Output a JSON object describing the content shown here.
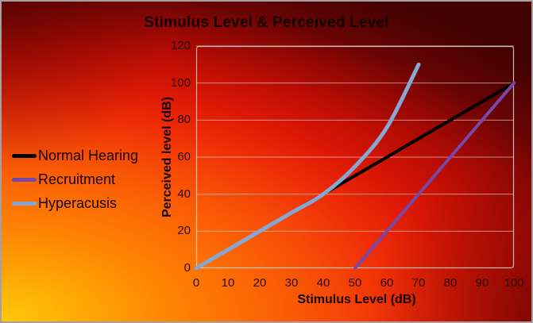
{
  "figure": {
    "kind": "chart-image",
    "frame_border_color": "#a8a0a0"
  },
  "chart_data": {
    "type": "line",
    "title": "Stimulus Level & Perceived Level",
    "xlabel": "Stimulus Level (dB)",
    "ylabel": "Perceived level (dB)",
    "xlim": [
      0,
      100
    ],
    "ylim": [
      0,
      120
    ],
    "x_ticks": [
      0,
      10,
      20,
      30,
      40,
      50,
      60,
      70,
      80,
      90,
      100
    ],
    "y_ticks": [
      0,
      20,
      40,
      60,
      80,
      100,
      120
    ],
    "grid": "horizontal",
    "legend_position": "left",
    "series": [
      {
        "name": "Normal Hearing",
        "color": "#050302",
        "stroke_width": 4,
        "smooth": false,
        "points": [
          [
            0,
            0
          ],
          [
            100,
            100
          ]
        ]
      },
      {
        "name": "Recruitment",
        "color": "#7848a8",
        "stroke_width": 4,
        "smooth": false,
        "points": [
          [
            50,
            0
          ],
          [
            100,
            100
          ]
        ]
      },
      {
        "name": "Hyperacusis",
        "color": "#86a6d4",
        "stroke_width": 5,
        "smooth": true,
        "points": [
          [
            0,
            0
          ],
          [
            10,
            10
          ],
          [
            20,
            20
          ],
          [
            30,
            30
          ],
          [
            40,
            40
          ],
          [
            50,
            55
          ],
          [
            60,
            76
          ],
          [
            70,
            110
          ]
        ]
      }
    ]
  },
  "styles": {
    "gridline_color": "rgba(233,219,214,0.62)",
    "plot_border_color": "rgba(233,219,214,0.82)",
    "title_color": "#140302",
    "axis_title_color": "#160402",
    "tick_label_color": "#2a0d04",
    "legend_text_color": "#170504",
    "background_inner": "#ffc808",
    "background_outer": "#420202"
  }
}
